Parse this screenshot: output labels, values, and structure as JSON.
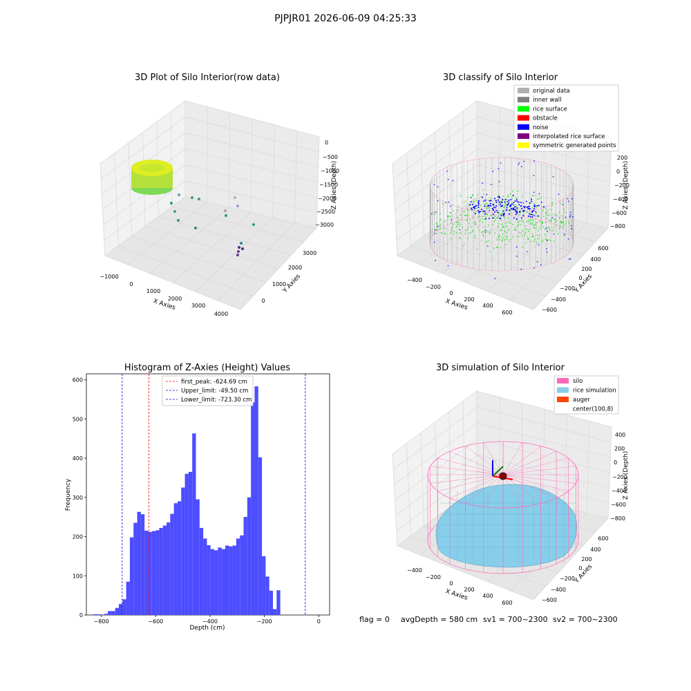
{
  "suptitle": "PJPJR01 2026-06-09 04:25:33",
  "colors": {
    "hist_bar": "#4d4dff",
    "peak_line": "#ff0000",
    "limit_line": "#0000cc",
    "silo_pink": "#ff69b4",
    "rice_sim": "#87ceeb",
    "wall_gray": "#808080"
  },
  "panel_raw": {
    "title": "3D Plot of Silo Interior(row data)",
    "xlabel": "X Axies",
    "ylabel": "Y Axies",
    "zlabel": "Z Axies (Depth)",
    "xticks": [
      "−1000",
      "0",
      "1000",
      "2000",
      "3000",
      "4000"
    ],
    "yticks": [
      "0",
      "1000",
      "2000",
      "3000"
    ],
    "zticks": [
      "0",
      "−500",
      "−1000",
      "−1500",
      "−2000",
      "−2500",
      "−3000"
    ]
  },
  "panel_classify": {
    "title": "3D classify of Silo Interior",
    "xlabel": "X Axies",
    "ylabel": "Y Axies",
    "zlabel": "Z Axies (Depth)",
    "xticks": [
      "−400",
      "−200",
      "0",
      "200",
      "400",
      "600"
    ],
    "yticks": [
      "600",
      "400",
      "200",
      "0",
      "−200",
      "−400",
      "−600"
    ],
    "zticks": [
      "200",
      "0",
      "−200",
      "−400",
      "−600",
      "−800"
    ],
    "legend": [
      {
        "label": "original data",
        "color": "#b0b0b0"
      },
      {
        "label": "inner wall",
        "color": "#808080"
      },
      {
        "label": "rice surface",
        "color": "#00ff00"
      },
      {
        "label": "obstacle",
        "color": "#ff0000"
      },
      {
        "label": "noise",
        "color": "#0000ff"
      },
      {
        "label": "interpolated rice surface",
        "color": "#800080"
      },
      {
        "label": "symmetric generated points",
        "color": "#ffff00"
      }
    ]
  },
  "panel_sim": {
    "title": "3D simulation of Silo Interior",
    "xlabel": "X Axies",
    "ylabel": "Y Axies",
    "zlabel": "Z Axies (Depth)",
    "xticks": [
      "−400",
      "−200",
      "0",
      "200",
      "400",
      "600"
    ],
    "yticks": [
      "600",
      "400",
      "200",
      "0",
      "−200",
      "−400",
      "−600"
    ],
    "zticks": [
      "400",
      "200",
      "0",
      "−200",
      "−400",
      "−600",
      "−800"
    ],
    "legend": [
      {
        "label": "silo",
        "color": "#ff69b4"
      },
      {
        "label": "rice simulation",
        "color": "#87ceeb"
      },
      {
        "label": "auger",
        "color": "#ff4500"
      },
      {
        "label": "center(100,8)",
        "color": "#ffffff"
      }
    ]
  },
  "footer": {
    "flag": "flag = 0",
    "avg": "avgDepth = 580 cm",
    "sv1": "sv1 = 700~2300",
    "sv2": "sv2 = 700~2300"
  },
  "chart_data": {
    "type": "bar",
    "title": "Histogram of Z-Axies (Height) Values",
    "xlabel": "Depth (cm)",
    "ylabel": "Frequency",
    "xlim": [
      -855,
      40
    ],
    "ylim": [
      0,
      615
    ],
    "xticks": [
      -800,
      -600,
      -400,
      -200,
      0
    ],
    "yticks": [
      0,
      100,
      200,
      300,
      400,
      500,
      600
    ],
    "bin_start": -830,
    "bin_width": 13.5,
    "values": [
      2,
      2,
      0,
      3,
      10,
      10,
      18,
      28,
      40,
      85,
      198,
      235,
      263,
      257,
      215,
      212,
      214,
      216,
      222,
      228,
      236,
      258,
      285,
      290,
      325,
      360,
      365,
      463,
      295,
      222,
      195,
      178,
      168,
      165,
      172,
      168,
      177,
      175,
      177,
      195,
      203,
      250,
      300,
      542,
      583,
      402,
      150,
      98,
      62,
      15,
      63
    ],
    "vlines": [
      {
        "label": "first_peak: -624.69 cm",
        "x": -624.69,
        "color": "#ff0000"
      },
      {
        "label": "Upper_limit: -49.50 cm",
        "x": -49.5,
        "color": "#0000cc"
      },
      {
        "label": "Lower_limit: -723.30 cm",
        "x": -723.3,
        "color": "#0000cc"
      }
    ],
    "legend_position": "upper center"
  }
}
